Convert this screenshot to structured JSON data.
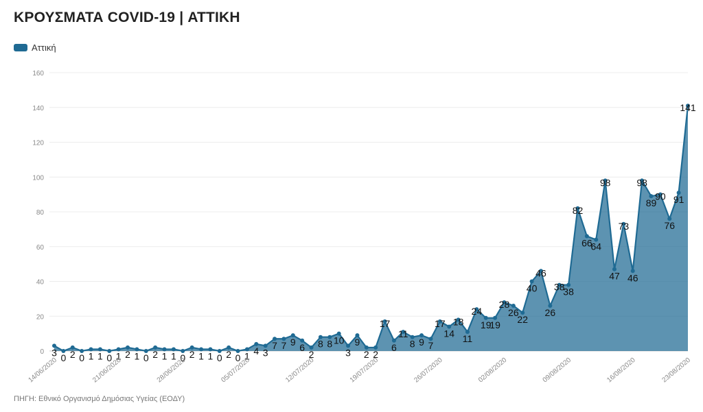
{
  "chart_data": {
    "type": "area",
    "title": "ΚΡΟΥΣΜΑΤΑ COVID-19 | ΑΤΤΙΚΗ",
    "source": "ΠΗΓΗ: Εθνικό Οργανισμό Δημόσιας Υγείας (ΕΟΔΥ)",
    "legend": {
      "position": "top-left"
    },
    "series": [
      {
        "name": "Αττική",
        "color": "#1f6a93",
        "values": [
          3,
          0,
          2,
          0,
          1,
          1,
          0,
          1,
          2,
          1,
          0,
          2,
          1,
          1,
          0,
          2,
          1,
          1,
          0,
          2,
          0,
          1,
          4,
          3,
          7,
          7,
          9,
          6,
          2,
          8,
          8,
          10,
          3,
          9,
          2,
          2,
          17,
          6,
          11,
          8,
          9,
          7,
          17,
          14,
          18,
          11,
          24,
          19,
          19,
          28,
          26,
          22,
          40,
          46,
          26,
          38,
          38,
          82,
          66,
          64,
          98,
          47,
          73,
          46,
          98,
          89,
          90,
          76,
          91,
          141
        ]
      }
    ],
    "x_start_label": "14/06/2020",
    "x_tick_labels": [
      "14/06/2020",
      "21/06/2020",
      "28/06/2020",
      "05/07/2020",
      "12/07/2020",
      "19/07/2020",
      "26/07/2020",
      "02/08/2020",
      "09/08/2020",
      "16/08/2020",
      "23/08/2020"
    ],
    "x_tick_step": 7,
    "y_ticks": [
      0,
      20,
      40,
      60,
      80,
      100,
      120,
      140,
      160
    ],
    "ylim": [
      0,
      160
    ],
    "grid": true
  }
}
